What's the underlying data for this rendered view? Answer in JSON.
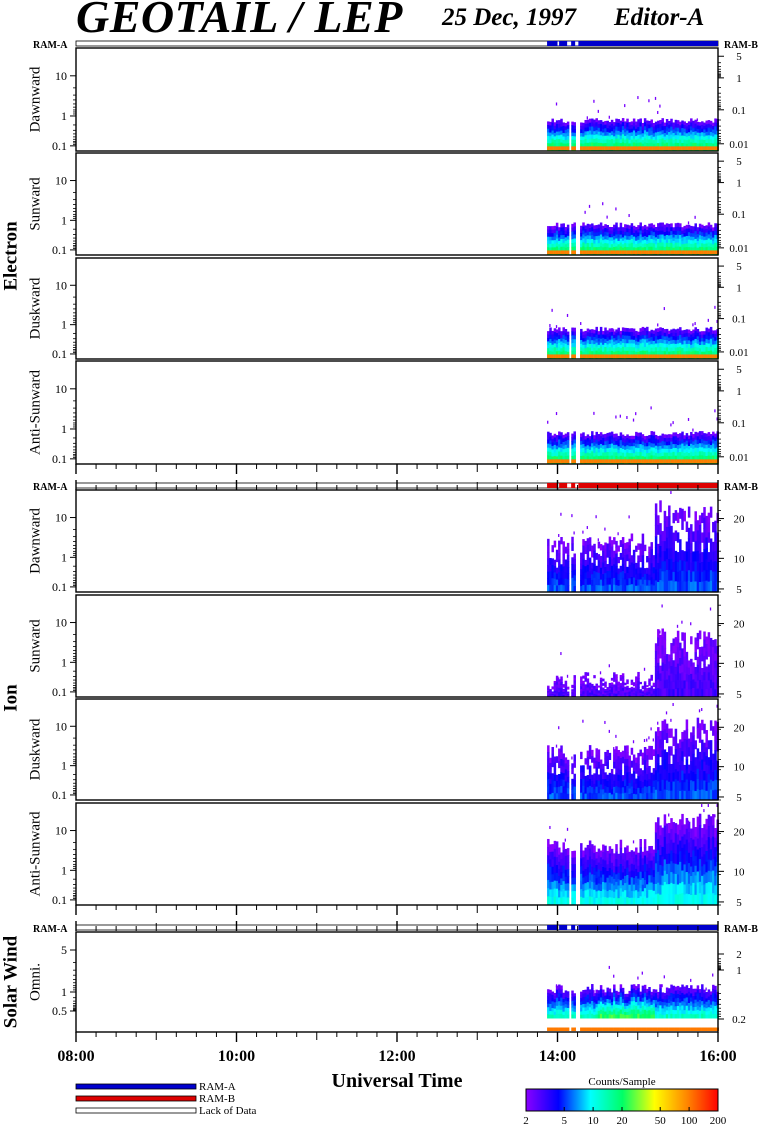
{
  "header": {
    "title": "GEOTAIL / LEP",
    "date": "25 Dec, 1997",
    "editor": "Editor-A"
  },
  "ram_labels": {
    "left": "RAM-A",
    "right": "RAM-B"
  },
  "groups": [
    {
      "label": "Electron"
    },
    {
      "label": "Ion"
    },
    {
      "label": "Solar Wind"
    }
  ],
  "colors": {
    "ram_a": "#0000cc",
    "ram_b": "#dd0000",
    "frame": "#000000"
  },
  "chart_data": {
    "type": "heatmap",
    "x_axis": {
      "label": "Universal Time",
      "range_hours": [
        8,
        16
      ],
      "tick_labels": [
        "08:00",
        "10:00",
        "12:00",
        "14:00",
        "16:00"
      ],
      "tick_hours": [
        8,
        10,
        12,
        14,
        16
      ]
    },
    "data_start_hour": 13.87,
    "data_gaps_hours": [
      [
        14.12,
        14.17
      ],
      [
        14.22,
        14.26
      ]
    ],
    "status_bars": [
      {
        "group": "Electron",
        "segments": [
          {
            "from": 13.87,
            "to": 16.0,
            "state": "RAM-A",
            "gaps": [
              [
                14.0,
                14.02
              ],
              [
                14.12,
                14.17
              ],
              [
                14.22,
                14.26
              ]
            ]
          }
        ]
      },
      {
        "group": "Ion",
        "segments": [
          {
            "from": 13.87,
            "to": 16.0,
            "state": "RAM-B",
            "gaps": [
              [
                14.0,
                14.02
              ],
              [
                14.12,
                14.17
              ],
              [
                14.22,
                14.26
              ]
            ]
          }
        ]
      },
      {
        "group": "Solar Wind",
        "segments": [
          {
            "from": 13.87,
            "to": 16.0,
            "state": "RAM-A",
            "gaps": [
              [
                14.0,
                14.02
              ],
              [
                14.12,
                14.17
              ],
              [
                14.22,
                14.26
              ]
            ]
          }
        ]
      }
    ],
    "panels": [
      {
        "group": "Electron",
        "ylabel": "Dawnward",
        "left_ticks": [
          "10",
          "1",
          "0.1"
        ],
        "right_ticks": [
          "5",
          "1",
          "0.1",
          "0.01"
        ],
        "pattern": "electron"
      },
      {
        "group": "Electron",
        "ylabel": "Sunward",
        "left_ticks": [
          "10",
          "1",
          "0.1"
        ],
        "right_ticks": [
          "5",
          "1",
          "0.1",
          "0.01"
        ],
        "pattern": "electron"
      },
      {
        "group": "Electron",
        "ylabel": "Duskward",
        "left_ticks": [
          "10",
          "1",
          "0.1"
        ],
        "right_ticks": [
          "5",
          "1",
          "0.1",
          "0.01"
        ],
        "pattern": "electron"
      },
      {
        "group": "Electron",
        "ylabel": "Anti-Sunward",
        "left_ticks": [
          "10",
          "1",
          "0.1"
        ],
        "right_ticks": [
          "5",
          "1",
          "0.1",
          "0.01"
        ],
        "pattern": "electron"
      },
      {
        "group": "Ion",
        "ylabel": "Dawnward",
        "left_ticks": [
          "10",
          "1",
          "0.1"
        ],
        "right_ticks": [
          "20",
          "10",
          "5"
        ],
        "pattern": "ion-dawn"
      },
      {
        "group": "Ion",
        "ylabel": "Sunward",
        "left_ticks": [
          "10",
          "1",
          "0.1"
        ],
        "right_ticks": [
          "20",
          "10",
          "5"
        ],
        "pattern": "ion-sun"
      },
      {
        "group": "Ion",
        "ylabel": "Duskward",
        "left_ticks": [
          "10",
          "1",
          "0.1"
        ],
        "right_ticks": [
          "20",
          "10",
          "5"
        ],
        "pattern": "ion-dusk"
      },
      {
        "group": "Ion",
        "ylabel": "Anti-Sunward",
        "left_ticks": [
          "10",
          "1",
          "0.1"
        ],
        "right_ticks": [
          "20",
          "10",
          "5"
        ],
        "pattern": "ion-anti"
      },
      {
        "group": "Solar Wind",
        "ylabel": "Omni.",
        "left_ticks": [
          "5",
          "1",
          "0.5"
        ],
        "right_ticks": [
          "2",
          "1",
          "0.2"
        ],
        "pattern": "sw"
      }
    ],
    "colorbar": {
      "title": "Counts/Sample",
      "tick_labels": [
        "2",
        "5",
        "10",
        "20",
        "50",
        "100",
        "200"
      ],
      "tick_values": [
        2,
        5,
        10,
        20,
        50,
        100,
        200
      ],
      "scale": "log",
      "stops": [
        "#8800ff",
        "#0000ff",
        "#00ffff",
        "#00ff66",
        "#ffff00",
        "#ff8800",
        "#ff0000"
      ]
    },
    "legend": [
      {
        "label": "RAM-A",
        "color": "#0000cc"
      },
      {
        "label": "RAM-B",
        "color": "#dd0000"
      },
      {
        "label": "Lack of Data",
        "color": "#ffffff"
      }
    ]
  }
}
